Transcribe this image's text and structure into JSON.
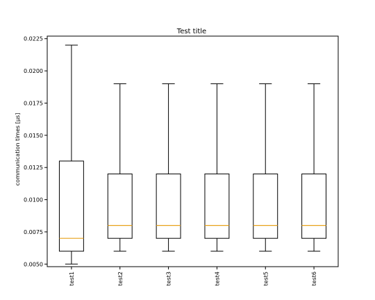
{
  "chart_data": {
    "type": "box",
    "title": "Test title",
    "xlabel": "",
    "ylabel": "communication times [µs]",
    "ylim": [
      0.0048,
      0.0227
    ],
    "yticks": [
      "0.0050",
      "0.0075",
      "0.0100",
      "0.0125",
      "0.0150",
      "0.0175",
      "0.0200",
      "0.0225"
    ],
    "tick_label_rotation": "vertical",
    "grid": false,
    "colors": {
      "box": "#000000",
      "median": "#e8a21a"
    },
    "series": [
      {
        "name": "test1",
        "whisker_low": 0.005,
        "q1": 0.006,
        "median": 0.007,
        "q3": 0.013,
        "whisker_high": 0.022
      },
      {
        "name": "test2",
        "whisker_low": 0.006,
        "q1": 0.007,
        "median": 0.008,
        "q3": 0.012,
        "whisker_high": 0.019
      },
      {
        "name": "test3",
        "whisker_low": 0.006,
        "q1": 0.007,
        "median": 0.008,
        "q3": 0.012,
        "whisker_high": 0.019
      },
      {
        "name": "test4",
        "whisker_low": 0.006,
        "q1": 0.007,
        "median": 0.008,
        "q3": 0.012,
        "whisker_high": 0.019
      },
      {
        "name": "test5",
        "whisker_low": 0.006,
        "q1": 0.007,
        "median": 0.008,
        "q3": 0.012,
        "whisker_high": 0.019
      },
      {
        "name": "test6",
        "whisker_low": 0.006,
        "q1": 0.007,
        "median": 0.008,
        "q3": 0.012,
        "whisker_high": 0.019
      }
    ]
  }
}
